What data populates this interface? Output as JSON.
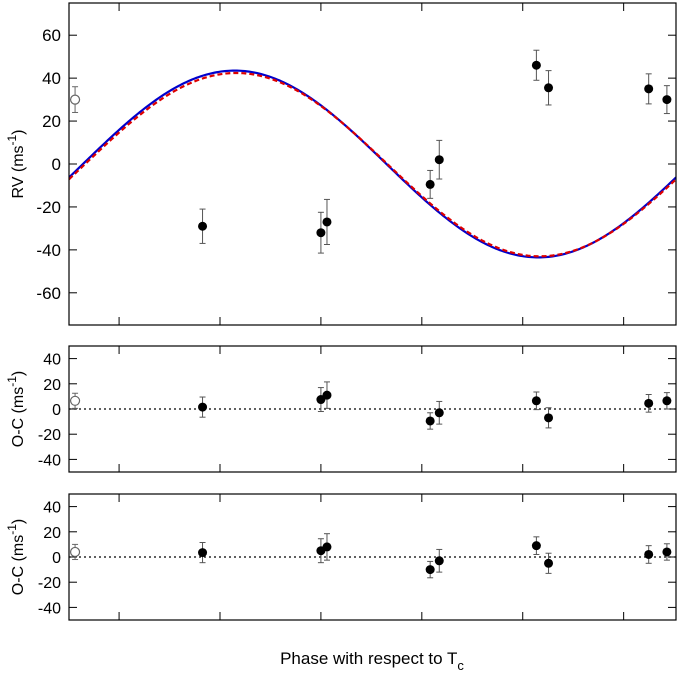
{
  "figure": {
    "xlabel": "Phase with respect to T",
    "xlabel_sub": "c"
  },
  "colors": {
    "model_solid": "#0000cc",
    "model_dashed": "#dd0000",
    "points": "#000000",
    "errorbars": "#555555",
    "open_point": "#666666"
  },
  "chart_data": [
    {
      "type": "scatter",
      "panel": "rv",
      "ylabel": "RV (ms",
      "ylabel_sup": "-1",
      "ylabel_close": ")",
      "ylim": [
        -75,
        75
      ],
      "xlim": [
        -0.28,
        0.72
      ],
      "yticks": [
        "-60",
        "-40",
        "-20",
        "0",
        "20",
        "40",
        "60"
      ],
      "yticks_values": [
        -60,
        -40,
        -20,
        0,
        20,
        40,
        60
      ],
      "grid": false,
      "series": [
        {
          "style": "filled-points-with-errorbars",
          "x": [
            -0.06,
            0.135,
            0.145,
            0.315,
            0.33,
            0.49,
            0.51,
            0.675,
            0.705
          ],
          "y": [
            -29,
            -32,
            -27,
            -9.5,
            2,
            46,
            35.5,
            35,
            30
          ],
          "err": [
            8,
            9.5,
            10.5,
            6.5,
            9,
            7,
            8,
            7,
            6.5
          ]
        },
        {
          "style": "open-point-with-errorbar",
          "x": [
            -0.27
          ],
          "y": [
            30
          ],
          "err": [
            6
          ]
        },
        {
          "style": "solid-curve",
          "model": {
            "amplitude": 43.5,
            "offset": 0,
            "phase_zero": 0.243
          }
        },
        {
          "style": "dashed-curve",
          "model": {
            "amplitude": 42.7,
            "offset": -0.3,
            "phase_zero": 0.2455
          }
        }
      ]
    },
    {
      "type": "scatter",
      "panel": "residuals-1",
      "ylabel": "O-C (ms",
      "ylabel_sup": "-1",
      "ylabel_close": ")",
      "ylim": [
        -50,
        50
      ],
      "xlim": [
        -0.28,
        0.72
      ],
      "yticks": [
        "-40",
        "-20",
        "0",
        "20",
        "40"
      ],
      "yticks_values": [
        -40,
        -20,
        0,
        20,
        40
      ],
      "zero_line": "dotted",
      "series": [
        {
          "style": "filled-points-with-errorbars",
          "x": [
            -0.06,
            0.135,
            0.145,
            0.315,
            0.33,
            0.49,
            0.51,
            0.675,
            0.705
          ],
          "y": [
            1.5,
            7.5,
            11,
            -9.5,
            -3,
            6.5,
            -7,
            4.5,
            6.5
          ],
          "err": [
            8,
            9.5,
            10.5,
            6.5,
            9,
            7,
            8,
            7,
            6.5
          ]
        },
        {
          "style": "open-point-with-errorbar",
          "x": [
            -0.27
          ],
          "y": [
            6.5
          ],
          "err": [
            6
          ]
        }
      ]
    },
    {
      "type": "scatter",
      "panel": "residuals-2",
      "ylabel": "O-C (ms",
      "ylabel_sup": "-1",
      "ylabel_close": ")",
      "ylim": [
        -50,
        50
      ],
      "xlim": [
        -0.28,
        0.72
      ],
      "yticks": [
        "-40",
        "-20",
        "0",
        "20",
        "40"
      ],
      "yticks_values": [
        -40,
        -20,
        0,
        20,
        40
      ],
      "zero_line": "dotted",
      "series": [
        {
          "style": "filled-points-with-errorbars",
          "x": [
            -0.06,
            0.135,
            0.145,
            0.315,
            0.33,
            0.49,
            0.51,
            0.675,
            0.705
          ],
          "y": [
            3.5,
            5,
            8,
            -10,
            -3,
            9,
            -5,
            2,
            4
          ],
          "err": [
            8,
            9.5,
            10.5,
            6.5,
            9,
            7,
            8,
            7,
            6.5
          ]
        },
        {
          "style": "open-point-with-errorbar",
          "x": [
            -0.27
          ],
          "y": [
            4
          ],
          "err": [
            6
          ]
        }
      ]
    }
  ]
}
